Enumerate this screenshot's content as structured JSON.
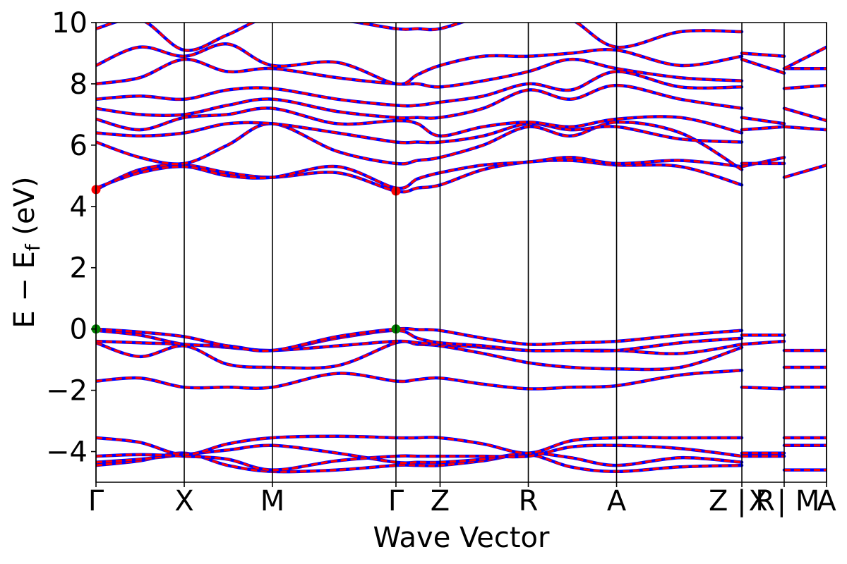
{
  "chart_data": {
    "type": "line",
    "title": "",
    "xlabel": "Wave Vector",
    "ylabel_parts": {
      "main": "E − E",
      "sub": "f",
      "unit": " (eV)"
    },
    "ylim": [
      -5,
      10
    ],
    "yticks": [
      -4,
      -2,
      0,
      2,
      4,
      6,
      8,
      10
    ],
    "ytick_labels": [
      "−4",
      "−2",
      "0",
      "2",
      "4",
      "6",
      "8",
      "10"
    ],
    "xlim": [
      0,
      1
    ],
    "kpoints": [
      {
        "label": "Γ",
        "x": 0.0
      },
      {
        "label": "X",
        "x": 0.1208
      },
      {
        "label": "M",
        "x": 0.2415
      },
      {
        "label": "Γ",
        "x": 0.4106
      },
      {
        "label": "Z",
        "x": 0.471
      },
      {
        "label": "R",
        "x": 0.5918
      },
      {
        "label": "A",
        "x": 0.7126
      },
      {
        "label": "Z | R",
        "x": 0.8841
      },
      {
        "label": "X | M",
        "x": 0.942
      },
      {
        "label": "A",
        "x": 1.0
      }
    ],
    "band_colors": {
      "primary": "#ff0000",
      "secondary": "#0000ff"
    },
    "markers": [
      {
        "name": "CBM",
        "x": 0.0,
        "y": 4.55,
        "color": "#ff0000"
      },
      {
        "name": "CBM",
        "x": 0.4106,
        "y": 4.5,
        "color": "#ff0000"
      },
      {
        "name": "VBM",
        "x": 0.0,
        "y": 0.0,
        "color": "#008000"
      },
      {
        "name": "VBM",
        "x": 0.4106,
        "y": 0.0,
        "color": "#008000"
      }
    ],
    "series": [
      {
        "x": [
          0,
          0.06,
          0.1208,
          0.18,
          0.2415,
          0.33,
          0.4106,
          0.44,
          0.471,
          0.53,
          0.5918,
          0.65,
          0.7126,
          0.8,
          0.8841
        ],
        "values": [
          -4.45,
          -4.3,
          -4.05,
          -4.45,
          -4.65,
          -4.6,
          -4.45,
          -4.45,
          -4.45,
          -4.3,
          -4.1,
          -4.5,
          -4.65,
          -4.5,
          -4.45
        ]
      },
      {
        "x": [
          0,
          0.06,
          0.1208,
          0.18,
          0.2415,
          0.33,
          0.4106,
          0.44,
          0.471,
          0.53,
          0.5918,
          0.65,
          0.7126,
          0.8,
          0.8841
        ],
        "values": [
          -4.35,
          -4.25,
          -4.1,
          -3.95,
          -3.8,
          -4.05,
          -4.35,
          -4.35,
          -4.35,
          -4.25,
          -4.05,
          -4.2,
          -4.45,
          -4.2,
          -4.35
        ]
      },
      {
        "x": [
          0,
          0.06,
          0.1208,
          0.18,
          0.2415,
          0.33,
          0.4106,
          0.44,
          0.471,
          0.53,
          0.5918,
          0.65,
          0.7126,
          0.8,
          0.8841
        ],
        "values": [
          -4.15,
          -4.1,
          -4.15,
          -4.25,
          -4.6,
          -4.3,
          -4.15,
          -4.15,
          -4.15,
          -4.15,
          -4.15,
          -3.85,
          -3.8,
          -3.9,
          -4.15
        ]
      },
      {
        "x": [
          0,
          0.06,
          0.1208,
          0.18,
          0.2415,
          0.33,
          0.4106,
          0.44,
          0.471,
          0.53,
          0.5918,
          0.65,
          0.7126,
          0.8,
          0.8841
        ],
        "values": [
          -3.55,
          -3.7,
          -4.1,
          -3.75,
          -3.55,
          -3.5,
          -3.55,
          -3.55,
          -3.55,
          -3.75,
          -4.05,
          -3.65,
          -3.55,
          -3.55,
          -3.55
        ]
      },
      {
        "x": [
          0,
          0.06,
          0.1208,
          0.18,
          0.2415,
          0.33,
          0.4106,
          0.44,
          0.471,
          0.53,
          0.5918,
          0.65,
          0.7126,
          0.8,
          0.8841
        ],
        "values": [
          -1.7,
          -1.6,
          -1.9,
          -1.9,
          -1.9,
          -1.45,
          -1.7,
          -1.65,
          -1.6,
          -1.8,
          -1.95,
          -1.9,
          -1.85,
          -1.5,
          -1.35
        ]
      },
      {
        "x": [
          0,
          0.06,
          0.1208,
          0.18,
          0.2415,
          0.33,
          0.4106,
          0.44,
          0.471,
          0.53,
          0.5918,
          0.65,
          0.7126,
          0.8,
          0.8841
        ],
        "values": [
          -0.45,
          -0.9,
          -0.55,
          -1.15,
          -1.25,
          -1.2,
          -0.45,
          -0.5,
          -0.55,
          -0.8,
          -1.1,
          -1.25,
          -1.3,
          -1.25,
          -0.6
        ]
      },
      {
        "x": [
          0,
          0.06,
          0.1208,
          0.18,
          0.2415,
          0.33,
          0.4106,
          0.44,
          0.471,
          0.53,
          0.5918,
          0.65,
          0.7126,
          0.8,
          0.8841
        ],
        "values": [
          -0.4,
          -0.45,
          -0.5,
          -0.6,
          -0.7,
          -0.55,
          -0.4,
          -0.45,
          -0.5,
          -0.6,
          -0.7,
          -0.7,
          -0.7,
          -0.8,
          -0.5
        ]
      },
      {
        "x": [
          0,
          0.06,
          0.1208,
          0.18,
          0.2415,
          0.33,
          0.4106,
          0.44,
          0.471,
          0.53,
          0.5918,
          0.65,
          0.7126,
          0.8,
          0.8841
        ],
        "values": [
          -0.05,
          -0.2,
          -0.5,
          -0.55,
          -0.7,
          -0.3,
          -0.05,
          -0.3,
          -0.45,
          -0.55,
          -0.7,
          -0.7,
          -0.7,
          -0.45,
          -0.3
        ]
      },
      {
        "x": [
          0,
          0.06,
          0.1208,
          0.18,
          0.2415,
          0.33,
          0.4106,
          0.44,
          0.471,
          0.53,
          0.5918,
          0.65,
          0.7126,
          0.8,
          0.8841
        ],
        "values": [
          0.0,
          -0.1,
          -0.25,
          -0.55,
          -0.7,
          -0.25,
          0.0,
          -0.02,
          -0.05,
          -0.3,
          -0.5,
          -0.45,
          -0.4,
          -0.2,
          -0.05
        ]
      },
      {
        "x": [
          0,
          0.06,
          0.1208,
          0.18,
          0.2415,
          0.33,
          0.4106,
          0.44,
          0.471,
          0.53,
          0.5918,
          0.65,
          0.7126,
          0.8,
          0.8841
        ],
        "values": [
          4.55,
          5.2,
          5.35,
          5.1,
          4.95,
          5.1,
          4.5,
          4.6,
          4.7,
          5.2,
          5.45,
          5.5,
          5.35,
          5.3,
          4.7
        ]
      },
      {
        "x": [
          0,
          0.06,
          0.1208,
          0.18,
          0.2415,
          0.33,
          0.4106,
          0.44,
          0.471,
          0.53,
          0.5918,
          0.65,
          0.7126,
          0.8,
          0.8841
        ],
        "values": [
          4.6,
          5.1,
          5.3,
          5.0,
          4.95,
          5.3,
          4.6,
          4.9,
          5.1,
          5.35,
          5.45,
          5.6,
          5.4,
          5.5,
          5.3
        ]
      },
      {
        "x": [
          0,
          0.06,
          0.1208,
          0.18,
          0.2415,
          0.33,
          0.4106,
          0.44,
          0.471,
          0.53,
          0.5918,
          0.65,
          0.7126,
          0.8,
          0.8841
        ],
        "values": [
          6.1,
          5.6,
          5.4,
          6.0,
          6.7,
          5.8,
          5.4,
          5.5,
          5.6,
          6.0,
          6.6,
          6.3,
          6.75,
          6.4,
          5.2
        ]
      },
      {
        "x": [
          0,
          0.06,
          0.1208,
          0.18,
          0.2415,
          0.33,
          0.4106,
          0.44,
          0.471,
          0.53,
          0.5918,
          0.65,
          0.7126,
          0.8,
          0.8841
        ],
        "values": [
          6.4,
          6.3,
          6.4,
          6.7,
          6.7,
          6.4,
          6.1,
          6.1,
          6.1,
          6.3,
          6.7,
          6.5,
          6.6,
          6.2,
          6.1
        ]
      },
      {
        "x": [
          0,
          0.06,
          0.1208,
          0.18,
          0.2415,
          0.33,
          0.4106,
          0.44,
          0.471,
          0.53,
          0.5918,
          0.65,
          0.7126,
          0.8,
          0.8841
        ],
        "values": [
          6.85,
          6.5,
          6.9,
          7.0,
          7.2,
          6.7,
          6.8,
          6.7,
          6.3,
          6.6,
          6.75,
          6.6,
          6.85,
          6.9,
          6.4
        ]
      },
      {
        "x": [
          0,
          0.06,
          0.1208,
          0.18,
          0.2415,
          0.33,
          0.4106,
          0.44,
          0.471,
          0.53,
          0.5918,
          0.65,
          0.7126,
          0.8,
          0.8841
        ],
        "values": [
          7.2,
          7.0,
          7.0,
          7.3,
          7.5,
          7.1,
          6.9,
          6.9,
          6.9,
          7.2,
          7.8,
          7.5,
          7.95,
          7.5,
          7.2
        ]
      },
      {
        "x": [
          0,
          0.06,
          0.1208,
          0.18,
          0.2415,
          0.33,
          0.4106,
          0.44,
          0.471,
          0.53,
          0.5918,
          0.65,
          0.7126,
          0.8,
          0.8841
        ],
        "values": [
          7.5,
          7.6,
          7.5,
          7.8,
          7.85,
          7.5,
          7.3,
          7.3,
          7.4,
          7.6,
          8.0,
          7.8,
          8.4,
          7.9,
          7.9
        ]
      },
      {
        "x": [
          0,
          0.06,
          0.1208,
          0.18,
          0.2415,
          0.33,
          0.4106,
          0.44,
          0.471,
          0.53,
          0.5918,
          0.65,
          0.7126,
          0.8,
          0.8841
        ],
        "values": [
          8.0,
          8.2,
          8.8,
          8.4,
          8.5,
          8.2,
          8.0,
          8.0,
          7.9,
          8.1,
          8.4,
          8.8,
          8.5,
          8.2,
          8.1
        ]
      },
      {
        "x": [
          0,
          0.06,
          0.1208,
          0.18,
          0.2415,
          0.33,
          0.4106,
          0.44,
          0.471,
          0.53,
          0.5918,
          0.65,
          0.7126,
          0.8,
          0.8841
        ],
        "values": [
          8.6,
          9.2,
          8.9,
          9.3,
          8.6,
          8.7,
          8.0,
          8.3,
          8.6,
          8.9,
          8.9,
          9.0,
          9.1,
          8.6,
          8.9
        ]
      },
      {
        "x": [
          0,
          0.06,
          0.1208,
          0.18,
          0.2415,
          0.33,
          0.4106,
          0.44,
          0.471,
          0.53,
          0.5918,
          0.65,
          0.7126,
          0.8,
          0.8841
        ],
        "values": [
          9.8,
          10.1,
          9.1,
          9.6,
          10.2,
          10.1,
          9.8,
          9.8,
          9.8,
          10.2,
          10.3,
          10.1,
          9.2,
          9.7,
          9.7
        ]
      },
      {
        "x": [
          0.8841,
          0.942
        ],
        "values": [
          -4.05,
          -4.05
        ]
      },
      {
        "x": [
          0.8841,
          0.942
        ],
        "values": [
          -4.15,
          -4.15
        ]
      },
      {
        "x": [
          0.8841,
          0.942
        ],
        "values": [
          -1.9,
          -1.95
        ]
      },
      {
        "x": [
          0.8841,
          0.942
        ],
        "values": [
          -0.5,
          -0.4
        ]
      },
      {
        "x": [
          0.8841,
          0.942
        ],
        "values": [
          -0.2,
          -0.2
        ]
      },
      {
        "x": [
          0.8841,
          0.942
        ],
        "values": [
          5.3,
          5.6
        ]
      },
      {
        "x": [
          0.8841,
          0.942
        ],
        "values": [
          5.4,
          5.4
        ]
      },
      {
        "x": [
          0.8841,
          0.942
        ],
        "values": [
          6.5,
          6.6
        ]
      },
      {
        "x": [
          0.8841,
          0.942
        ],
        "values": [
          6.9,
          6.7
        ]
      },
      {
        "x": [
          0.8841,
          0.942
        ],
        "values": [
          8.8,
          8.35
        ]
      },
      {
        "x": [
          0.8841,
          0.942
        ],
        "values": [
          9.0,
          8.9
        ]
      },
      {
        "x": [
          0.942,
          1.0
        ],
        "values": [
          -4.6,
          -4.6
        ]
      },
      {
        "x": [
          0.942,
          1.0
        ],
        "values": [
          -3.8,
          -3.8
        ]
      },
      {
        "x": [
          0.942,
          1.0
        ],
        "values": [
          -3.55,
          -3.55
        ]
      },
      {
        "x": [
          0.942,
          1.0
        ],
        "values": [
          -1.9,
          -1.9
        ]
      },
      {
        "x": [
          0.942,
          1.0
        ],
        "values": [
          -1.25,
          -1.25
        ]
      },
      {
        "x": [
          0.942,
          1.0
        ],
        "values": [
          -0.7,
          -0.7
        ]
      },
      {
        "x": [
          0.942,
          1.0
        ],
        "values": [
          4.95,
          5.35
        ]
      },
      {
        "x": [
          0.942,
          1.0
        ],
        "values": [
          6.6,
          6.5
        ]
      },
      {
        "x": [
          0.942,
          1.0
        ],
        "values": [
          7.2,
          6.8
        ]
      },
      {
        "x": [
          0.942,
          1.0
        ],
        "values": [
          7.85,
          7.95
        ]
      },
      {
        "x": [
          0.942,
          1.0
        ],
        "values": [
          8.5,
          8.5
        ]
      },
      {
        "x": [
          0.942,
          1.0
        ],
        "values": [
          8.5,
          9.2
        ]
      }
    ]
  }
}
